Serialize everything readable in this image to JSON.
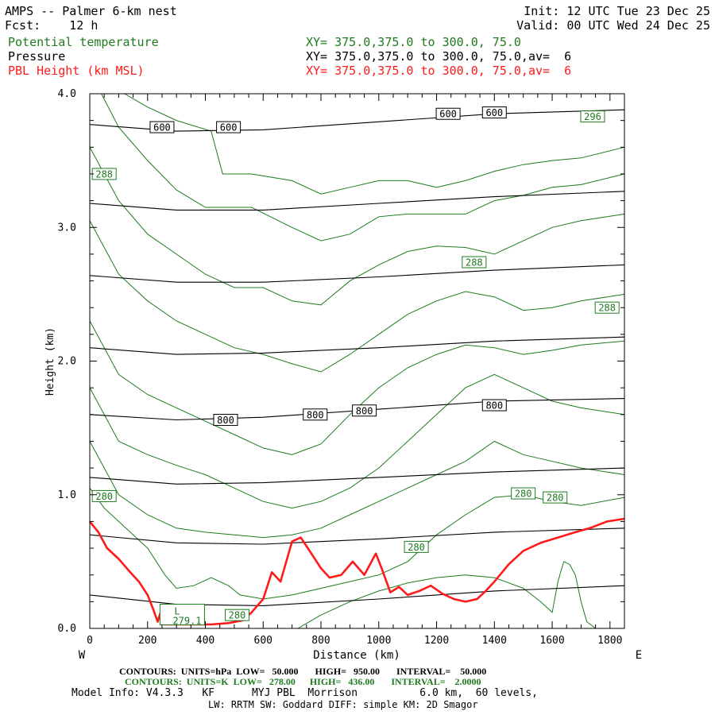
{
  "header": {
    "title": "AMPS -- Palmer 6-km nest",
    "fcst": "Fcst:    12 h",
    "init": "Init: 12 UTC Tue 23 Dec 25",
    "valid": "Valid: 00 UTC Wed 24 Dec 25",
    "fields": [
      {
        "name": "Potential temperature",
        "xy": "XY= 375.0,375.0 to 300.0, 75.0",
        "color": "#1e7a1e"
      },
      {
        "name": "Pressure",
        "xy": "XY= 375.0,375.0 to 300.0, 75.0,av=  6",
        "color": "#000000"
      },
      {
        "name": "PBL Height (km MSL)",
        "xy": "XY= 375.0,375.0 to 300.0, 75.0,av=  6",
        "color": "#ff1a1a"
      }
    ]
  },
  "footer": {
    "pressure_contours": "CONTOURS:  UNITS=hPa  LOW=   50.000       HIGH=   950.00       INTERVAL=    50.000",
    "theta_contours": "CONTOURS:  UNITS=K  LOW=   278.00      HIGH=   436.00       INTERVAL=    2.0000",
    "model_info": "Model Info: V4.3.3   KF      MYJ PBL  Morrison          6.0 km,  60 levels,",
    "physics": "LW: RRTM SW: Goddard DIFF: simple KM: 2D Smagor"
  },
  "chart_data": {
    "type": "line",
    "title": "",
    "xlabel": "Distance (km)",
    "ylabel": "Height (km)",
    "xlim": [
      0,
      1850
    ],
    "ylim": [
      0,
      4
    ],
    "x_ticks": [
      0,
      200,
      400,
      600,
      800,
      1000,
      1200,
      1400,
      1600,
      1800
    ],
    "x_tick_labels": [
      "0",
      "200",
      "400",
      "600",
      "800",
      "1000",
      "1200",
      "1400",
      "1600",
      "1800"
    ],
    "y_ticks": [
      0,
      1,
      2,
      3,
      4
    ],
    "y_tick_labels": [
      "0.0",
      "1.0",
      "2.0",
      "3.0",
      "4.0"
    ],
    "west_label": "W",
    "east_label": "E",
    "pbl_height": {
      "name": "PBL Height (km MSL)",
      "color": "#ff1a1a",
      "x": [
        0,
        30,
        60,
        100,
        140,
        170,
        200,
        220,
        235,
        245,
        260,
        300,
        360,
        420,
        480,
        530,
        560,
        600,
        630,
        660,
        700,
        730,
        770,
        800,
        830,
        870,
        910,
        950,
        990,
        1010,
        1040,
        1070,
        1100,
        1140,
        1180,
        1220,
        1260,
        1300,
        1340,
        1370,
        1400,
        1450,
        1500,
        1560,
        1620,
        1680,
        1730,
        1790,
        1850
      ],
      "y": [
        0.8,
        0.72,
        0.6,
        0.52,
        0.42,
        0.35,
        0.25,
        0.14,
        0.05,
        0.12,
        0.03,
        0.03,
        0.03,
        0.03,
        0.04,
        0.06,
        0.12,
        0.22,
        0.42,
        0.35,
        0.65,
        0.68,
        0.55,
        0.45,
        0.38,
        0.4,
        0.5,
        0.4,
        0.56,
        0.45,
        0.27,
        0.31,
        0.25,
        0.28,
        0.32,
        0.26,
        0.22,
        0.2,
        0.22,
        0.28,
        0.35,
        0.48,
        0.58,
        0.64,
        0.68,
        0.72,
        0.75,
        0.8,
        0.82
      ]
    },
    "pressure_contours": {
      "name": "Pressure (hPa)",
      "color": "#000000",
      "lines": [
        {
          "x": [
            0,
            300,
            600,
            1000,
            1400,
            1850
          ],
          "y": [
            3.77,
            3.72,
            3.73,
            3.79,
            3.85,
            3.88
          ]
        },
        {
          "x": [
            0,
            300,
            600,
            1000,
            1400,
            1850
          ],
          "y": [
            3.18,
            3.13,
            3.13,
            3.18,
            3.23,
            3.27
          ]
        },
        {
          "x": [
            0,
            300,
            600,
            1000,
            1400,
            1850
          ],
          "y": [
            2.64,
            2.59,
            2.59,
            2.63,
            2.68,
            2.72
          ]
        },
        {
          "x": [
            0,
            300,
            600,
            1000,
            1400,
            1850
          ],
          "y": [
            2.1,
            2.05,
            2.06,
            2.1,
            2.15,
            2.18
          ]
        },
        {
          "x": [
            0,
            300,
            600,
            1000,
            1400,
            1850
          ],
          "y": [
            1.6,
            1.56,
            1.58,
            1.64,
            1.7,
            1.72
          ]
        },
        {
          "x": [
            0,
            300,
            600,
            1000,
            1400,
            1850
          ],
          "y": [
            1.13,
            1.08,
            1.09,
            1.13,
            1.17,
            1.2
          ]
        },
        {
          "x": [
            0,
            300,
            600,
            1000,
            1400,
            1850
          ],
          "y": [
            0.7,
            0.64,
            0.63,
            0.67,
            0.72,
            0.75
          ]
        },
        {
          "x": [
            0,
            300,
            600,
            1000,
            1400,
            1850
          ],
          "y": [
            0.25,
            0.18,
            0.17,
            0.22,
            0.28,
            0.32
          ]
        }
      ],
      "labels": [
        {
          "text": "600",
          "x": 250,
          "y": 3.75
        },
        {
          "text": "600",
          "x": 480,
          "y": 3.75
        },
        {
          "text": "600",
          "x": 1240,
          "y": 3.85
        },
        {
          "text": "600",
          "x": 1400,
          "y": 3.86
        },
        {
          "text": "800",
          "x": 470,
          "y": 1.56
        },
        {
          "text": "800",
          "x": 780,
          "y": 1.6
        },
        {
          "text": "800",
          "x": 950,
          "y": 1.63
        },
        {
          "text": "800",
          "x": 1400,
          "y": 1.67
        }
      ]
    },
    "theta_contours": {
      "name": "Potential temperature (K)",
      "color": "#1e7a1e",
      "lines": [
        {
          "x": [
            120,
            200,
            300,
            420,
            460,
            560,
            700,
            800,
            900,
            1000,
            1100,
            1200,
            1300,
            1400,
            1500,
            1600,
            1700,
            1850
          ],
          "y": [
            4.0,
            3.9,
            3.8,
            3.72,
            3.4,
            3.4,
            3.35,
            3.25,
            3.3,
            3.35,
            3.35,
            3.3,
            3.35,
            3.42,
            3.47,
            3.5,
            3.52,
            3.6
          ]
        },
        {
          "x": [
            40,
            100,
            200,
            300,
            400,
            560,
            700,
            800,
            900,
            1000,
            1100,
            1200,
            1300,
            1400,
            1500,
            1600,
            1700,
            1850
          ],
          "y": [
            4.0,
            3.75,
            3.5,
            3.28,
            3.15,
            3.15,
            3.0,
            2.9,
            2.95,
            3.08,
            3.1,
            3.1,
            3.1,
            3.2,
            3.24,
            3.3,
            3.32,
            3.4
          ]
        },
        {
          "x": [
            0,
            50,
            100,
            200,
            300,
            400,
            500,
            600,
            700,
            800,
            900,
            1000,
            1100,
            1200,
            1300,
            1400,
            1500,
            1600,
            1700,
            1850
          ],
          "y": [
            3.6,
            3.4,
            3.2,
            2.95,
            2.8,
            2.65,
            2.55,
            2.55,
            2.45,
            2.42,
            2.6,
            2.72,
            2.82,
            2.86,
            2.85,
            2.8,
            2.9,
            3.0,
            3.05,
            3.1
          ]
        },
        {
          "x": [
            0,
            50,
            100,
            200,
            300,
            400,
            500,
            600,
            700,
            800,
            900,
            1000,
            1100,
            1200,
            1300,
            1400,
            1500,
            1600,
            1700,
            1850
          ],
          "y": [
            3.05,
            2.85,
            2.65,
            2.45,
            2.3,
            2.2,
            2.1,
            2.05,
            1.98,
            1.92,
            2.05,
            2.2,
            2.35,
            2.45,
            2.52,
            2.48,
            2.38,
            2.4,
            2.45,
            2.5
          ]
        },
        {
          "x": [
            0,
            50,
            100,
            200,
            300,
            400,
            500,
            600,
            700,
            800,
            900,
            1000,
            1100,
            1200,
            1300,
            1400,
            1500,
            1600,
            1700,
            1850
          ],
          "y": [
            2.3,
            2.1,
            1.9,
            1.75,
            1.65,
            1.55,
            1.45,
            1.35,
            1.3,
            1.38,
            1.6,
            1.8,
            1.95,
            2.05,
            2.12,
            2.1,
            2.05,
            2.08,
            2.12,
            2.15
          ]
        },
        {
          "x": [
            0,
            50,
            100,
            200,
            300,
            400,
            500,
            600,
            700,
            800,
            900,
            1000,
            1100,
            1200,
            1300,
            1400,
            1500,
            1600,
            1700,
            1850
          ],
          "y": [
            1.8,
            1.6,
            1.4,
            1.3,
            1.22,
            1.15,
            1.05,
            0.95,
            0.9,
            0.95,
            1.05,
            1.2,
            1.4,
            1.6,
            1.8,
            1.9,
            1.8,
            1.7,
            1.65,
            1.6
          ]
        },
        {
          "x": [
            0,
            50,
            100,
            200,
            300,
            400,
            500,
            600,
            700,
            800,
            900,
            1000,
            1100,
            1200,
            1300,
            1400,
            1500,
            1600,
            1700,
            1850
          ],
          "y": [
            1.4,
            1.2,
            1.0,
            0.85,
            0.75,
            0.72,
            0.7,
            0.68,
            0.7,
            0.75,
            0.85,
            0.95,
            1.05,
            1.15,
            1.25,
            1.4,
            1.3,
            1.25,
            1.2,
            1.15
          ]
        },
        {
          "x": [
            0,
            50,
            100,
            150,
            200,
            260,
            300,
            360,
            420,
            480,
            520,
            600,
            700,
            800,
            900,
            1000,
            1100,
            1200,
            1300,
            1400,
            1500,
            1600,
            1700,
            1850
          ],
          "y": [
            1.05,
            0.9,
            0.8,
            0.7,
            0.6,
            0.4,
            0.3,
            0.32,
            0.38,
            0.32,
            0.25,
            0.22,
            0.25,
            0.3,
            0.35,
            0.4,
            0.5,
            0.7,
            0.85,
            0.98,
            1.0,
            0.95,
            0.92,
            0.98
          ]
        },
        {
          "x": [
            720,
            800,
            900,
            1000,
            1100,
            1200,
            1300,
            1400,
            1500,
            1560,
            1600,
            1620,
            1640,
            1660,
            1680,
            1700,
            1720,
            1750
          ],
          "y": [
            0.0,
            0.1,
            0.2,
            0.28,
            0.34,
            0.38,
            0.4,
            0.38,
            0.3,
            0.2,
            0.12,
            0.35,
            0.5,
            0.48,
            0.4,
            0.2,
            0.05,
            0.0
          ]
        }
      ],
      "labels": [
        {
          "text": "296",
          "x": 1740,
          "y": 3.83
        },
        {
          "text": "288",
          "x": 50,
          "y": 3.4
        },
        {
          "text": "288",
          "x": 1330,
          "y": 2.74
        },
        {
          "text": "288",
          "x": 1790,
          "y": 2.4
        },
        {
          "text": "280",
          "x": 50,
          "y": 0.99
        },
        {
          "text": "280",
          "x": 1500,
          "y": 1.01
        },
        {
          "text": "280",
          "x": 1610,
          "y": 0.98
        },
        {
          "text": "280",
          "x": 1130,
          "y": 0.61
        },
        {
          "text": "280",
          "x": 510,
          "y": 0.1
        }
      ],
      "low_marker": {
        "letter": "L",
        "value": "279.1",
        "x": 320,
        "y": 0.08
      }
    }
  }
}
